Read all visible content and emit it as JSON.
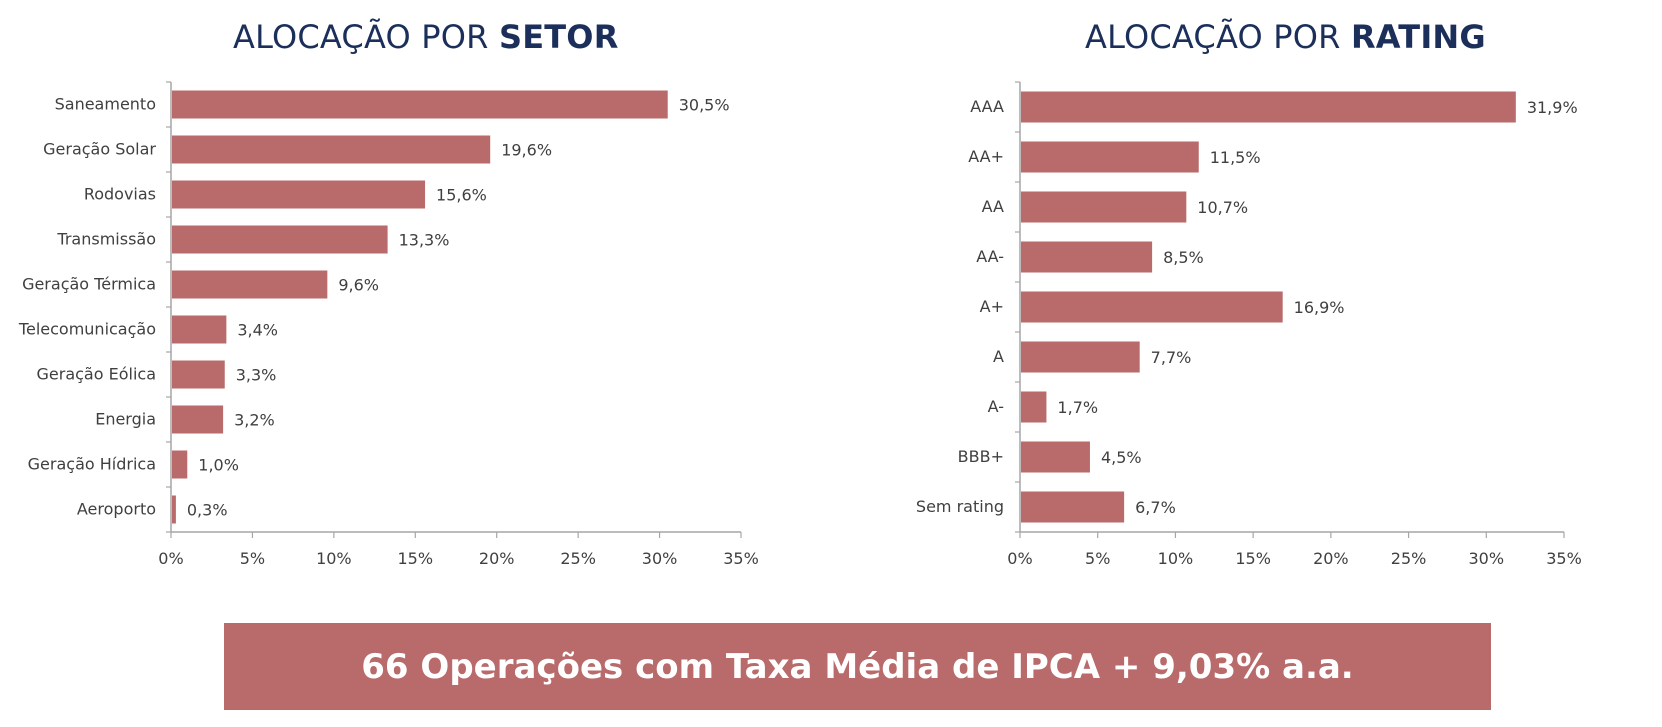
{
  "colors": {
    "bar": "#b96a6a",
    "axis": "#a6a6a6",
    "title": "#1b2f5a",
    "text": "#404040",
    "banner": "#b96a6a"
  },
  "titles": {
    "left_light": "ALOCAÇÃO POR ",
    "left_bold": "SETOR",
    "right_light": "ALOCAÇÃO POR ",
    "right_bold": "RATING"
  },
  "banner": {
    "text": "66 Operações com Taxa Média de IPCA + 9,03% a.a."
  },
  "chart_data": [
    {
      "type": "bar",
      "orientation": "horizontal",
      "title": "ALOCAÇÃO POR SETOR",
      "categories": [
        "Saneamento",
        "Geração Solar",
        "Rodovias",
        "Transmissão",
        "Geração Térmica",
        "Telecomunicação",
        "Geração Eólica",
        "Energia",
        "Geração Hídrica",
        "Aeroporto"
      ],
      "values": [
        30.5,
        19.6,
        15.6,
        13.3,
        9.6,
        3.4,
        3.3,
        3.2,
        1.0,
        0.3
      ],
      "data_labels": [
        "30,5%",
        "19,6%",
        "15,6%",
        "13,3%",
        "9,6%",
        "3,4%",
        "3,3%",
        "3,2%",
        "1,0%",
        "0,3%"
      ],
      "xlim": [
        0,
        35
      ],
      "xticks": [
        "0%",
        "5%",
        "10%",
        "15%",
        "20%",
        "25%",
        "30%",
        "35%"
      ],
      "grid": false
    },
    {
      "type": "bar",
      "orientation": "horizontal",
      "title": "ALOCAÇÃO POR RATING",
      "categories": [
        "AAA",
        "AA+",
        "AA",
        "AA-",
        "A+",
        "A",
        "A-",
        "BBB+",
        "Sem rating"
      ],
      "values": [
        31.9,
        11.5,
        10.7,
        8.5,
        16.9,
        7.7,
        1.7,
        4.5,
        6.7
      ],
      "data_labels": [
        "31,9%",
        "11,5%",
        "10,7%",
        "8,5%",
        "16,9%",
        "7,7%",
        "1,7%",
        "4,5%",
        "6,7%"
      ],
      "xlim": [
        0,
        35
      ],
      "xticks": [
        "0%",
        "5%",
        "10%",
        "15%",
        "20%",
        "25%",
        "30%",
        "35%"
      ],
      "grid": false
    }
  ]
}
